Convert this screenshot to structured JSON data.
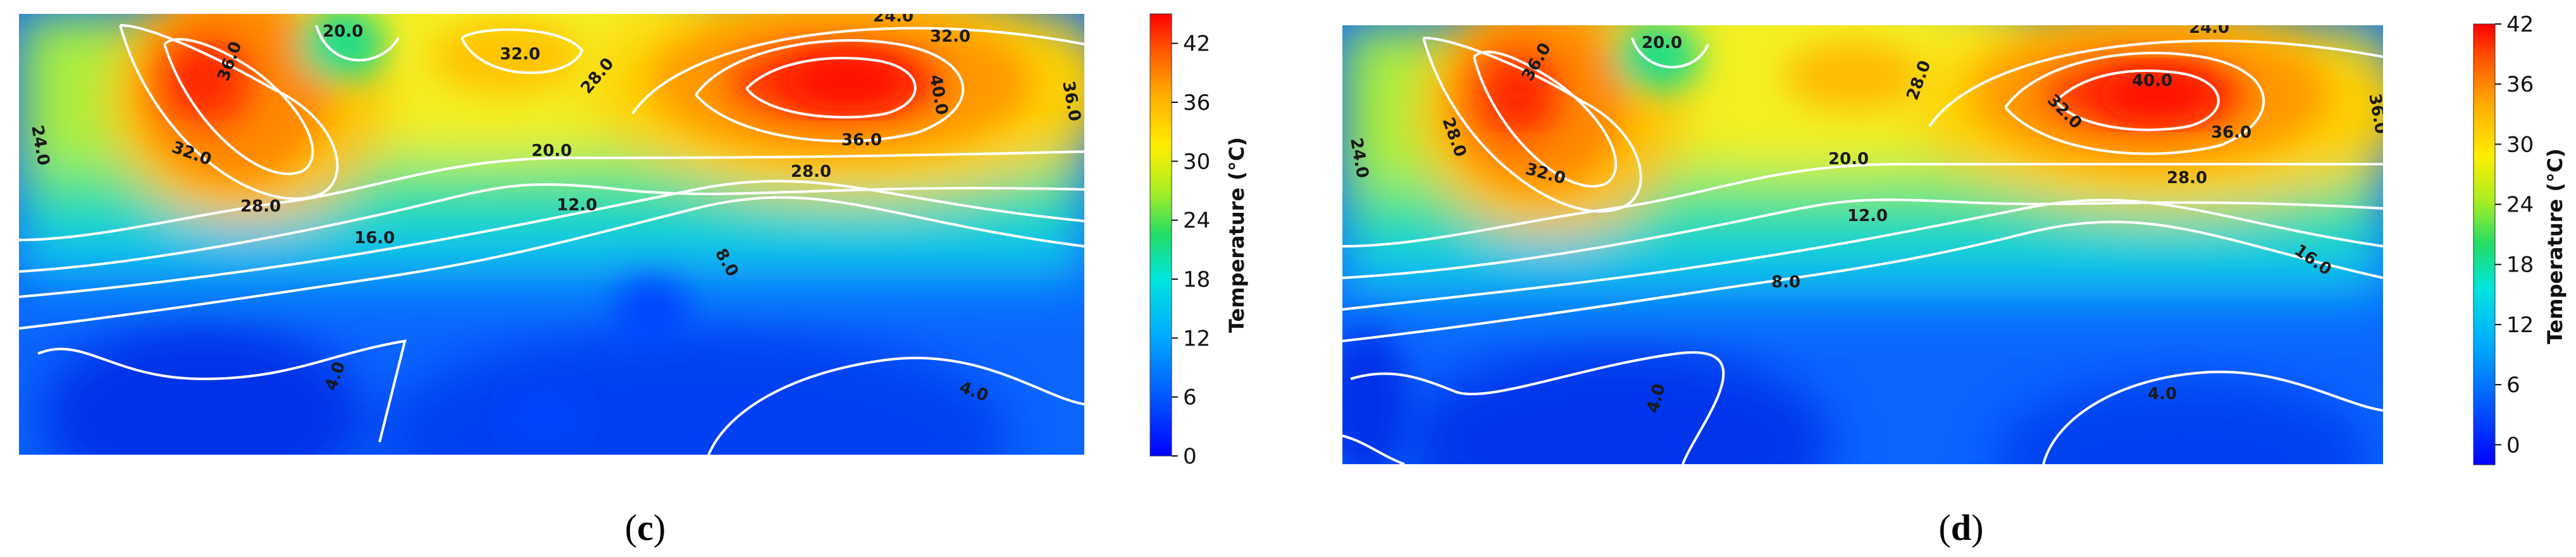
{
  "chart_data": [
    {
      "type": "heatmap",
      "panel_label": "c",
      "colorbar": {
        "title": "Temperature (°C)",
        "ticks": [
          "0",
          "6",
          "12",
          "18",
          "24",
          "30",
          "36",
          "42"
        ],
        "range": [
          0,
          45
        ]
      },
      "contour_labels": [
        "36.0",
        "20.0",
        "32.0",
        "28.0",
        "24.0",
        "32.0",
        "40.0",
        "36.0",
        "24.0",
        "32.0",
        "28.0",
        "20.0",
        "36.0",
        "28.0",
        "12.0",
        "16.0",
        "8.0",
        "4.0",
        "4.0"
      ],
      "hotspots": [
        {
          "name": "left hotspot",
          "peak": 38
        },
        {
          "name": "right hotspot",
          "peak": 43
        },
        {
          "name": "top middle warm spot",
          "peak": 33
        }
      ]
    },
    {
      "type": "heatmap",
      "panel_label": "d",
      "colorbar": {
        "title": "Temperature (°C)",
        "ticks": [
          "0",
          "6",
          "12",
          "18",
          "24",
          "30",
          "36",
          "42"
        ],
        "range": [
          -2,
          42
        ]
      },
      "contour_labels": [
        "20.0",
        "24.0",
        "36.0",
        "28.0",
        "28.0",
        "40.0",
        "32.0",
        "36.0",
        "24.0",
        "32.0",
        "20.0",
        "28.0",
        "36.0",
        "12.0",
        "16.0",
        "8.0",
        "4.0",
        "4.0"
      ],
      "hotspots": [
        {
          "name": "left hotspot",
          "peak": 38
        },
        {
          "name": "right hotspot",
          "peak": 42
        },
        {
          "name": "top middle warm spot",
          "peak": 30
        }
      ]
    }
  ]
}
